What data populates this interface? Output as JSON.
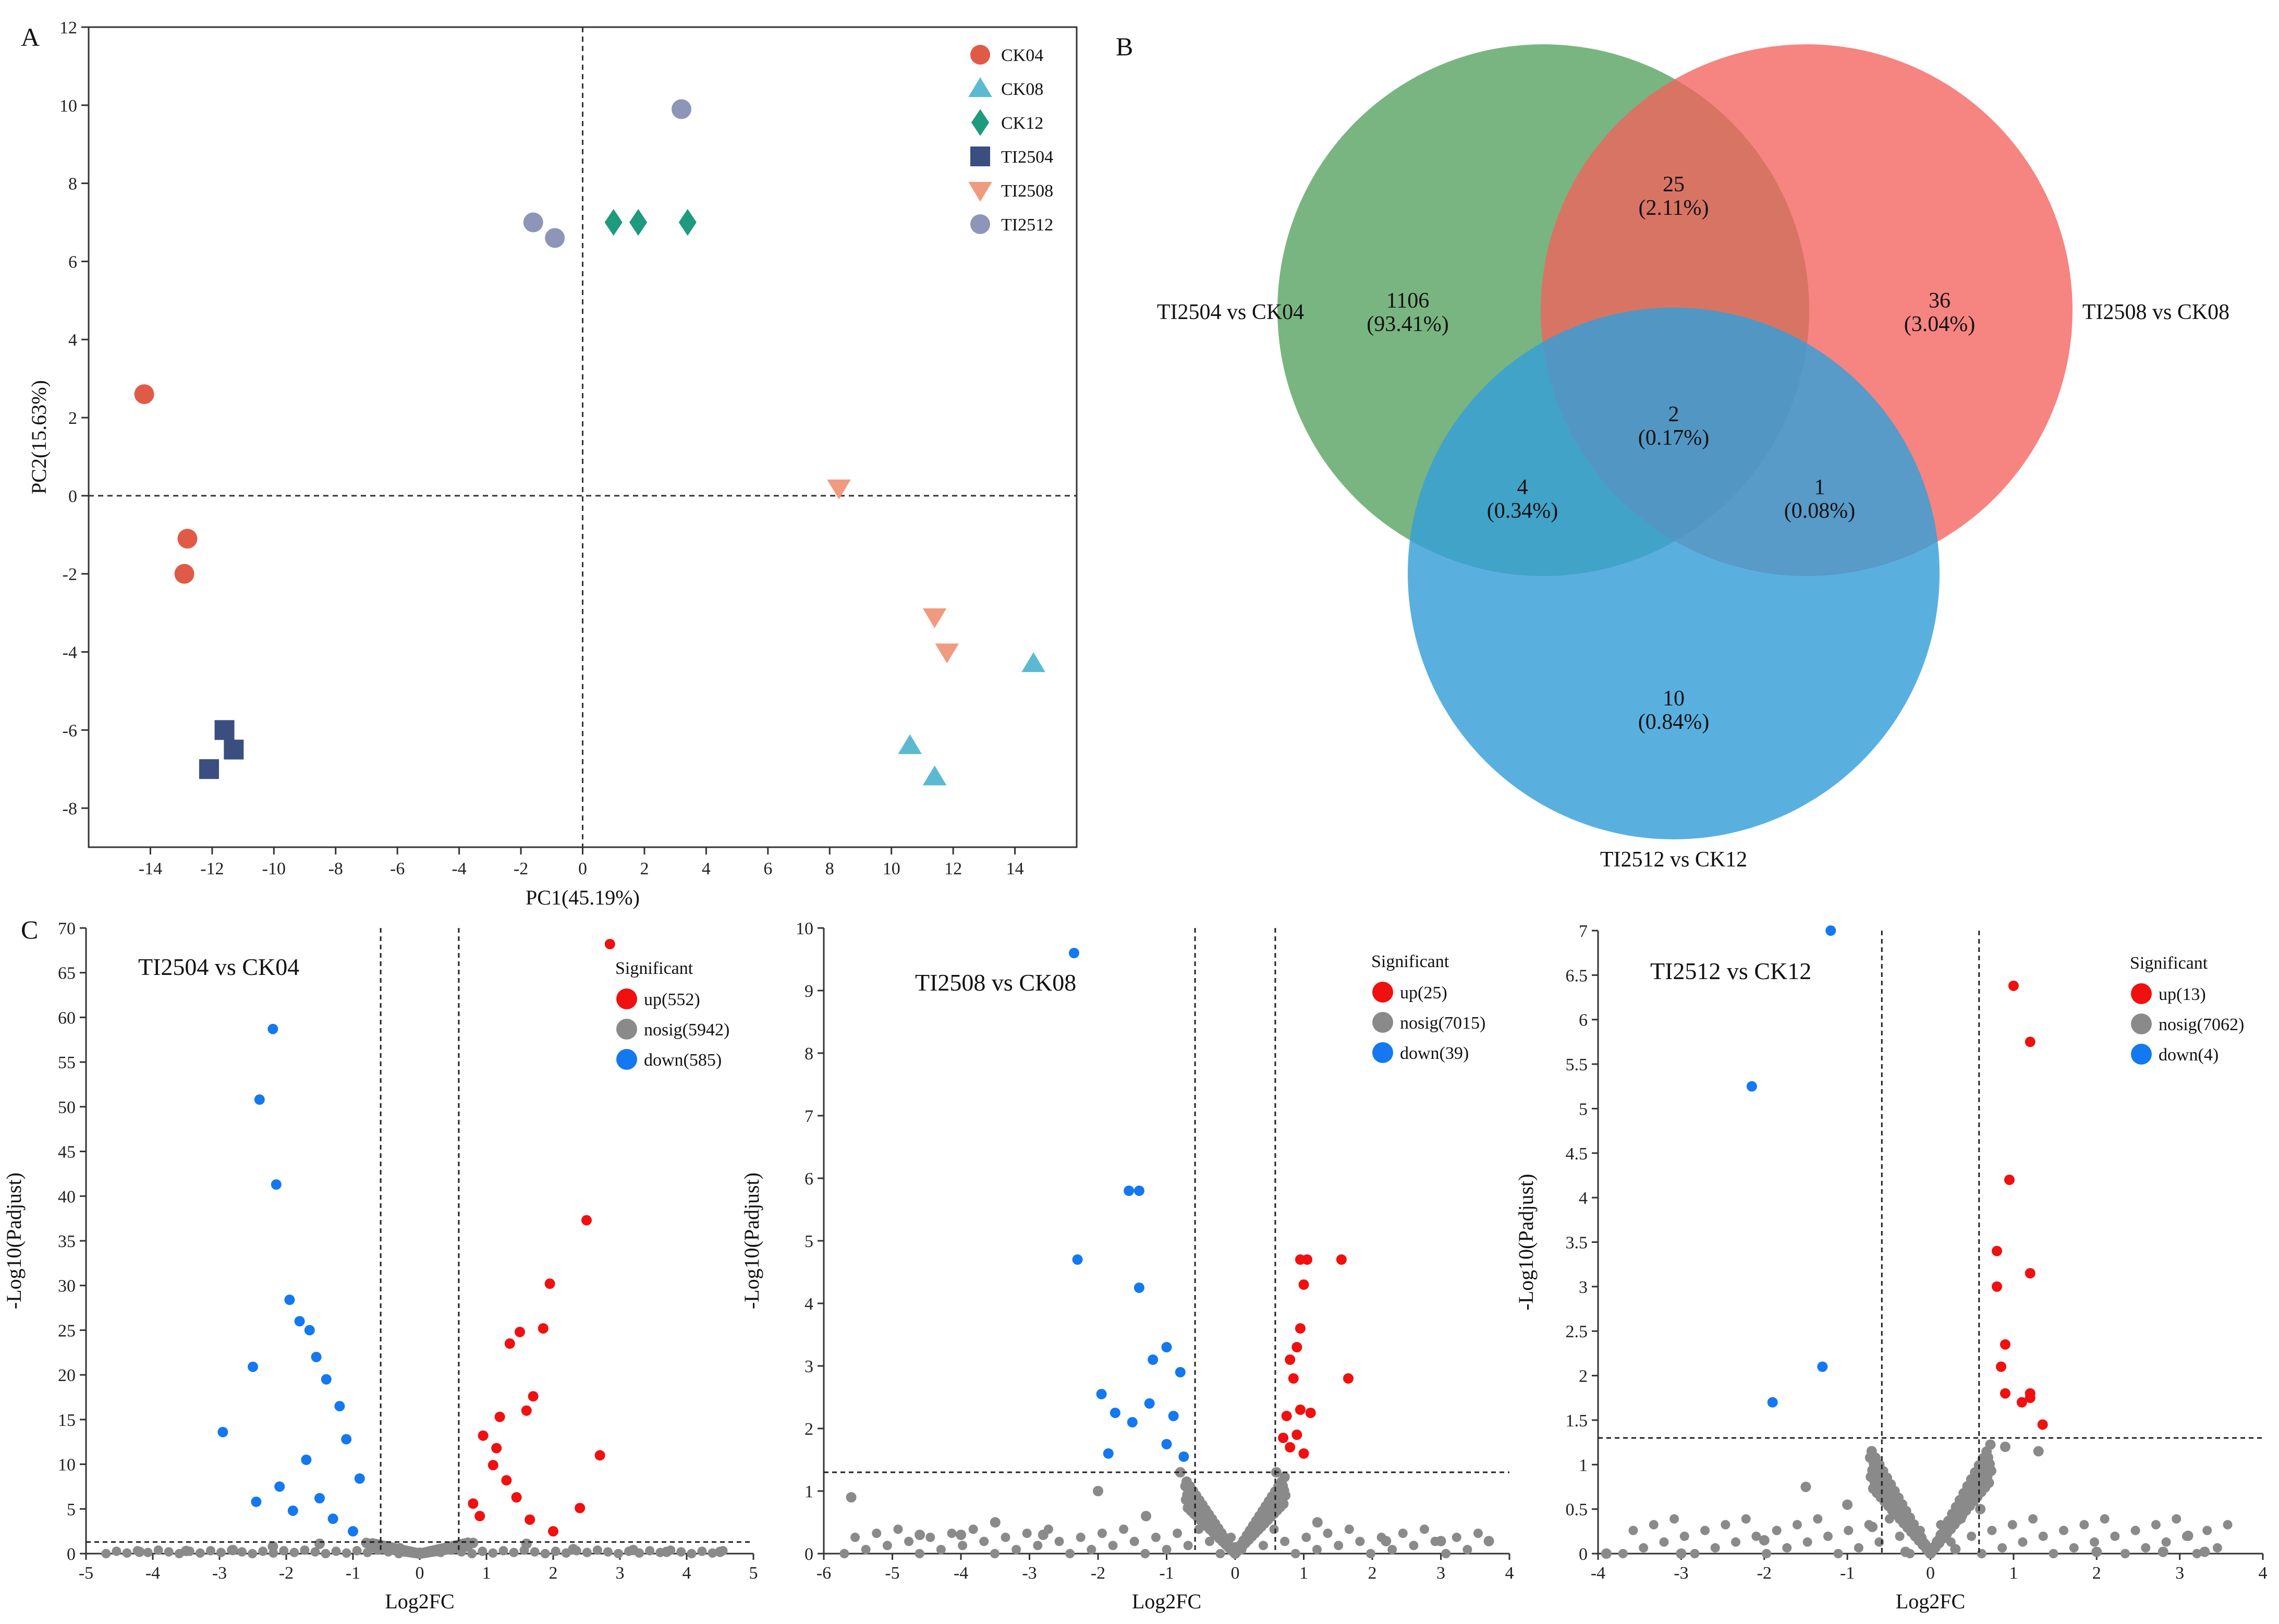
{
  "panels": {
    "a": "A",
    "b": "B",
    "c": "C"
  },
  "chart_data": [
    {
      "type": "scatter",
      "panel": "A",
      "xlabel": "PC1(45.19%)",
      "ylabel": "PC2(15.63%)",
      "xlim": [
        -16,
        16
      ],
      "ylim": [
        -9,
        12
      ],
      "xticks": [
        -14,
        -12,
        -10,
        -8,
        -6,
        -4,
        -2,
        0,
        2,
        4,
        6,
        8,
        10,
        12,
        14
      ],
      "yticks": [
        -8,
        -6,
        -4,
        -2,
        0,
        2,
        4,
        6,
        8,
        10,
        12
      ],
      "legend_position": "top-right",
      "series": [
        {
          "name": "CK04",
          "marker": "circle",
          "color": "#e05b47",
          "points": [
            [
              -14.2,
              2.6
            ],
            [
              -12.8,
              -1.1
            ],
            [
              -12.9,
              -2.0
            ]
          ]
        },
        {
          "name": "CK08",
          "marker": "triangle-up",
          "color": "#5bbad2",
          "points": [
            [
              14.6,
              -4.3
            ],
            [
              10.6,
              -6.4
            ],
            [
              11.4,
              -7.2
            ]
          ]
        },
        {
          "name": "CK12",
          "marker": "diamond",
          "color": "#1e9a7c",
          "points": [
            [
              1.0,
              7.0
            ],
            [
              1.8,
              7.0
            ],
            [
              3.4,
              7.0
            ]
          ]
        },
        {
          "name": "TI2504",
          "marker": "square",
          "color": "#3a4f80",
          "points": [
            [
              -11.6,
              -6.0
            ],
            [
              -11.3,
              -6.5
            ],
            [
              -12.1,
              -7.0
            ]
          ]
        },
        {
          "name": "TI2508",
          "marker": "triangle-down",
          "color": "#f09a80",
          "points": [
            [
              8.3,
              0.2
            ],
            [
              11.4,
              -3.1
            ],
            [
              11.8,
              -4.0
            ]
          ]
        },
        {
          "name": "TI2512",
          "marker": "circle",
          "color": "#8d96b8",
          "points": [
            [
              3.2,
              9.9
            ],
            [
              -1.6,
              7.0
            ],
            [
              -0.9,
              6.6
            ]
          ]
        }
      ]
    },
    {
      "type": "venn",
      "panel": "B",
      "sets": [
        {
          "name": "TI2504 vs CK04",
          "color": "#5ba564"
        },
        {
          "name": "TI2508 vs CK08",
          "color": "#f4625c"
        },
        {
          "name": "TI2512 vs CK12",
          "color": "#359fd8"
        }
      ],
      "regions": [
        {
          "sets": [
            "TI2504 vs CK04"
          ],
          "count": "1106",
          "percent": "(93.41%)"
        },
        {
          "sets": [
            "TI2508 vs CK08"
          ],
          "count": "36",
          "percent": "(3.04%)"
        },
        {
          "sets": [
            "TI2512 vs CK12"
          ],
          "count": "10",
          "percent": "(0.84%)"
        },
        {
          "sets": [
            "TI2504 vs CK04",
            "TI2508 vs CK08"
          ],
          "count": "25",
          "percent": "(2.11%)"
        },
        {
          "sets": [
            "TI2504 vs CK04",
            "TI2512 vs CK12"
          ],
          "count": "4",
          "percent": "(0.34%)"
        },
        {
          "sets": [
            "TI2508 vs CK08",
            "TI2512 vs CK12"
          ],
          "count": "1",
          "percent": "(0.08%)"
        },
        {
          "sets": [
            "TI2504 vs CK04",
            "TI2508 vs CK08",
            "TI2512 vs CK12"
          ],
          "count": "2",
          "percent": "(0.17%)"
        }
      ]
    },
    {
      "type": "scatter",
      "subtype": "volcano",
      "panel": "C1",
      "title": "TI2504 vs CK04",
      "xlabel": "Log2FC",
      "ylabel": "-Log10(Padjust)",
      "xlim": [
        -5,
        5
      ],
      "ylim": [
        0,
        70
      ],
      "xticks": [
        -5,
        -4,
        -3,
        -2,
        -1,
        0,
        1,
        2,
        3,
        4,
        5
      ],
      "yticks": [
        0,
        5,
        10,
        15,
        20,
        25,
        30,
        35,
        40,
        45,
        50,
        55,
        60,
        65,
        70
      ],
      "thresholds": {
        "log2fc": 0.585,
        "neglog10p": 1.3
      },
      "legend_title": "Significant",
      "legend": [
        {
          "label": "up(552)",
          "color": "#f01010"
        },
        {
          "label": "nosig(5942)",
          "color": "#8a8a8a"
        },
        {
          "label": "down(585)",
          "color": "#1478f0"
        }
      ],
      "up_points": [
        [
          2.85,
          68.2
        ],
        [
          2.5,
          37.3
        ],
        [
          1.95,
          30.2
        ],
        [
          1.85,
          25.2
        ],
        [
          1.5,
          24.8
        ],
        [
          1.35,
          23.5
        ],
        [
          2.7,
          11.0
        ],
        [
          2.4,
          5.1
        ],
        [
          1.7,
          17.6
        ],
        [
          1.6,
          16.0
        ],
        [
          1.2,
          15.3
        ],
        [
          0.95,
          13.2
        ],
        [
          1.1,
          9.9
        ],
        [
          1.3,
          8.2
        ],
        [
          1.45,
          6.3
        ],
        [
          0.8,
          5.6
        ],
        [
          1.65,
          3.8
        ],
        [
          2.0,
          2.5
        ],
        [
          0.9,
          4.2
        ],
        [
          1.15,
          11.8
        ]
      ],
      "down_points": [
        [
          -2.2,
          58.7
        ],
        [
          -2.4,
          50.8
        ],
        [
          -2.15,
          41.3
        ],
        [
          -1.95,
          28.4
        ],
        [
          -1.8,
          26.0
        ],
        [
          -1.65,
          25.0
        ],
        [
          -1.55,
          22.0
        ],
        [
          -2.5,
          20.9
        ],
        [
          -2.95,
          13.6
        ],
        [
          -1.4,
          19.5
        ],
        [
          -1.2,
          16.5
        ],
        [
          -2.45,
          5.8
        ],
        [
          -2.1,
          7.5
        ],
        [
          -1.9,
          4.8
        ],
        [
          -1.1,
          12.8
        ],
        [
          -1.7,
          10.5
        ],
        [
          -0.9,
          8.4
        ],
        [
          -1.3,
          3.9
        ],
        [
          -1.5,
          6.2
        ],
        [
          -1.0,
          2.5
        ]
      ],
      "nosig_points": [
        [
          -4.2,
          0.2
        ],
        [
          -3.5,
          0.3
        ],
        [
          -2.8,
          0.4
        ],
        [
          -2.2,
          0.8
        ],
        [
          -1.5,
          1.1
        ],
        [
          -0.8,
          1.2
        ],
        [
          -0.3,
          0.6
        ],
        [
          0.0,
          0.1
        ],
        [
          0.3,
          0.5
        ],
        [
          0.8,
          1.2
        ],
        [
          1.6,
          1.1
        ],
        [
          2.3,
          0.5
        ],
        [
          3.2,
          0.4
        ],
        [
          3.7,
          0.2
        ],
        [
          4.5,
          0.2
        ]
      ]
    },
    {
      "type": "scatter",
      "subtype": "volcano",
      "panel": "C2",
      "title": "TI2508 vs CK08",
      "xlabel": "Log2FC",
      "ylabel": "-Log10(Padjust)",
      "xlim": [
        -6,
        4
      ],
      "ylim": [
        0,
        10
      ],
      "xticks": [
        -6,
        -5,
        -4,
        -3,
        -2,
        -1,
        0,
        1,
        2,
        3,
        4
      ],
      "yticks": [
        0,
        1,
        2,
        3,
        4,
        5,
        6,
        7,
        8,
        9,
        10
      ],
      "thresholds": {
        "log2fc": 0.585,
        "neglog10p": 1.3
      },
      "legend_title": "Significant",
      "legend": [
        {
          "label": "up(25)",
          "color": "#f01010"
        },
        {
          "label": "nosig(7015)",
          "color": "#8a8a8a"
        },
        {
          "label": "down(39)",
          "color": "#1478f0"
        }
      ],
      "up_points": [
        [
          0.95,
          4.7
        ],
        [
          1.05,
          4.7
        ],
        [
          1.55,
          4.7
        ],
        [
          1.0,
          4.3
        ],
        [
          0.95,
          3.6
        ],
        [
          0.9,
          3.3
        ],
        [
          0.8,
          3.1
        ],
        [
          0.85,
          2.8
        ],
        [
          1.65,
          2.8
        ],
        [
          0.95,
          2.3
        ],
        [
          1.1,
          2.25
        ],
        [
          0.75,
          2.2
        ],
        [
          0.9,
          1.9
        ],
        [
          0.8,
          1.7
        ],
        [
          1.0,
          1.6
        ],
        [
          0.7,
          1.85
        ]
      ],
      "down_points": [
        [
          -2.35,
          9.6
        ],
        [
          -1.55,
          5.8
        ],
        [
          -1.4,
          5.8
        ],
        [
          -2.3,
          4.7
        ],
        [
          -1.4,
          4.25
        ],
        [
          -1.0,
          3.3
        ],
        [
          -1.2,
          3.1
        ],
        [
          -0.8,
          2.9
        ],
        [
          -1.95,
          2.55
        ],
        [
          -1.75,
          2.25
        ],
        [
          -1.5,
          2.1
        ],
        [
          -1.25,
          2.4
        ],
        [
          -0.9,
          2.2
        ],
        [
          -1.0,
          1.75
        ],
        [
          -1.85,
          1.6
        ],
        [
          -0.75,
          1.55
        ]
      ],
      "nosig_points": [
        [
          -5.6,
          0.9
        ],
        [
          -4.6,
          0.3
        ],
        [
          -4.0,
          0.3
        ],
        [
          -3.5,
          0.5
        ],
        [
          -2.8,
          0.3
        ],
        [
          -2.0,
          1.0
        ],
        [
          -1.3,
          0.6
        ],
        [
          -0.8,
          1.3
        ],
        [
          -0.4,
          0.5
        ],
        [
          0.0,
          0.1
        ],
        [
          0.4,
          0.6
        ],
        [
          0.6,
          1.3
        ],
        [
          1.2,
          0.5
        ],
        [
          2.2,
          0.2
        ],
        [
          3.0,
          0.2
        ],
        [
          3.7,
          0.2
        ]
      ]
    },
    {
      "type": "scatter",
      "subtype": "volcano",
      "panel": "C3",
      "title": "TI2512 vs CK12",
      "xlabel": "Log2FC",
      "ylabel": "-Log10(Padjust)",
      "xlim": [
        -4,
        4
      ],
      "ylim": [
        0,
        7
      ],
      "xticks": [
        -4,
        -3,
        -2,
        -1,
        0,
        1,
        2,
        3,
        4
      ],
      "yticks": [
        0,
        0.5,
        1,
        1.5,
        2,
        2.5,
        3,
        3.5,
        4,
        4.5,
        5,
        5.5,
        6,
        6.5,
        7
      ],
      "ytick_labels": [
        "0",
        "0.5",
        "1",
        "1.5",
        "2",
        "2.5",
        "3",
        "3.5",
        "4",
        "4.5",
        "5",
        "5.5",
        "6",
        "6.5",
        "7"
      ],
      "thresholds": {
        "log2fc": 0.585,
        "neglog10p": 1.3
      },
      "legend_title": "Significant",
      "legend": [
        {
          "label": "up(13)",
          "color": "#f01010"
        },
        {
          "label": "nosig(7062)",
          "color": "#8a8a8a"
        },
        {
          "label": "down(4)",
          "color": "#1478f0"
        }
      ],
      "up_points": [
        [
          1.0,
          6.38
        ],
        [
          1.2,
          5.75
        ],
        [
          0.95,
          4.2
        ],
        [
          0.8,
          3.4
        ],
        [
          1.2,
          3.15
        ],
        [
          0.8,
          3.0
        ],
        [
          0.9,
          2.35
        ],
        [
          0.85,
          2.1
        ],
        [
          1.2,
          1.75
        ],
        [
          1.1,
          1.7
        ],
        [
          1.35,
          1.45
        ],
        [
          0.9,
          1.8
        ],
        [
          1.2,
          1.8
        ]
      ],
      "down_points": [
        [
          -1.2,
          7.0
        ],
        [
          -2.15,
          5.25
        ],
        [
          -1.3,
          2.1
        ],
        [
          -1.9,
          1.7
        ]
      ],
      "nosig_points": [
        [
          -3.9,
          0.0
        ],
        [
          -3.0,
          0.0
        ],
        [
          -2.0,
          0.15
        ],
        [
          -1.5,
          0.75
        ],
        [
          -1.0,
          0.55
        ],
        [
          -0.7,
          0.3
        ],
        [
          -0.3,
          0.02
        ],
        [
          0.0,
          0.02
        ],
        [
          0.3,
          0.05
        ],
        [
          0.6,
          0.5
        ],
        [
          0.9,
          1.2
        ],
        [
          1.3,
          1.15
        ],
        [
          2.0,
          0.02
        ],
        [
          2.8,
          0.02
        ],
        [
          3.1,
          0.2
        ],
        [
          3.3,
          0.02
        ]
      ]
    }
  ]
}
